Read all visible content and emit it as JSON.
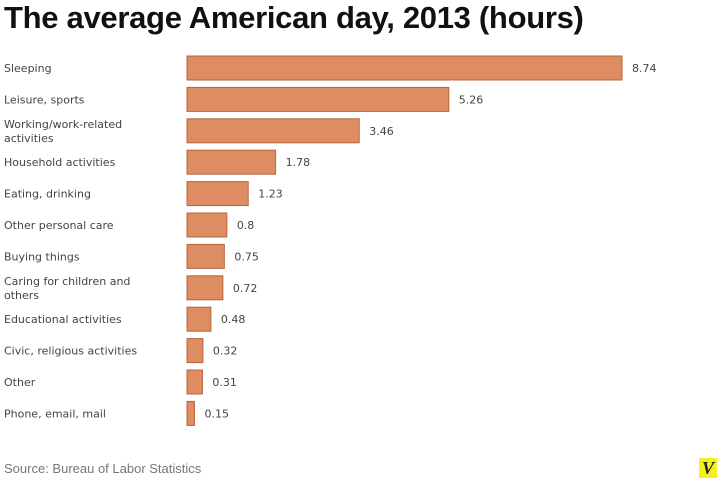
{
  "chart_data": {
    "type": "bar",
    "orientation": "horizontal",
    "title": "The average American day, 2013 (hours)",
    "categories": [
      [
        "Sleeping"
      ],
      [
        "Leisure, sports"
      ],
      [
        "Working/work-related",
        "activities"
      ],
      [
        "Household activities"
      ],
      [
        "Eating, drinking"
      ],
      [
        "Other personal care"
      ],
      [
        "Buying things"
      ],
      [
        "Caring for children and",
        "others"
      ],
      [
        "Educational activities"
      ],
      [
        "Civic, religious activities"
      ],
      [
        "Other"
      ],
      [
        "Phone, email, mail"
      ]
    ],
    "values": [
      8.74,
      5.26,
      3.46,
      1.78,
      1.23,
      0.8,
      0.75,
      0.72,
      0.48,
      0.32,
      0.31,
      0.15
    ],
    "value_labels": [
      "8.74",
      "5.26",
      "3.46",
      "1.78",
      "1.23",
      "0.8",
      "0.75",
      "0.72",
      "0.48",
      "0.32",
      "0.31",
      "0.15"
    ],
    "xlim": [
      0,
      8.74
    ],
    "grid": false,
    "bar_color": "#de8c62",
    "bar_edge_color": "#b8653d"
  },
  "source": "Source: Bureau of Labor Statistics",
  "logo": "V"
}
